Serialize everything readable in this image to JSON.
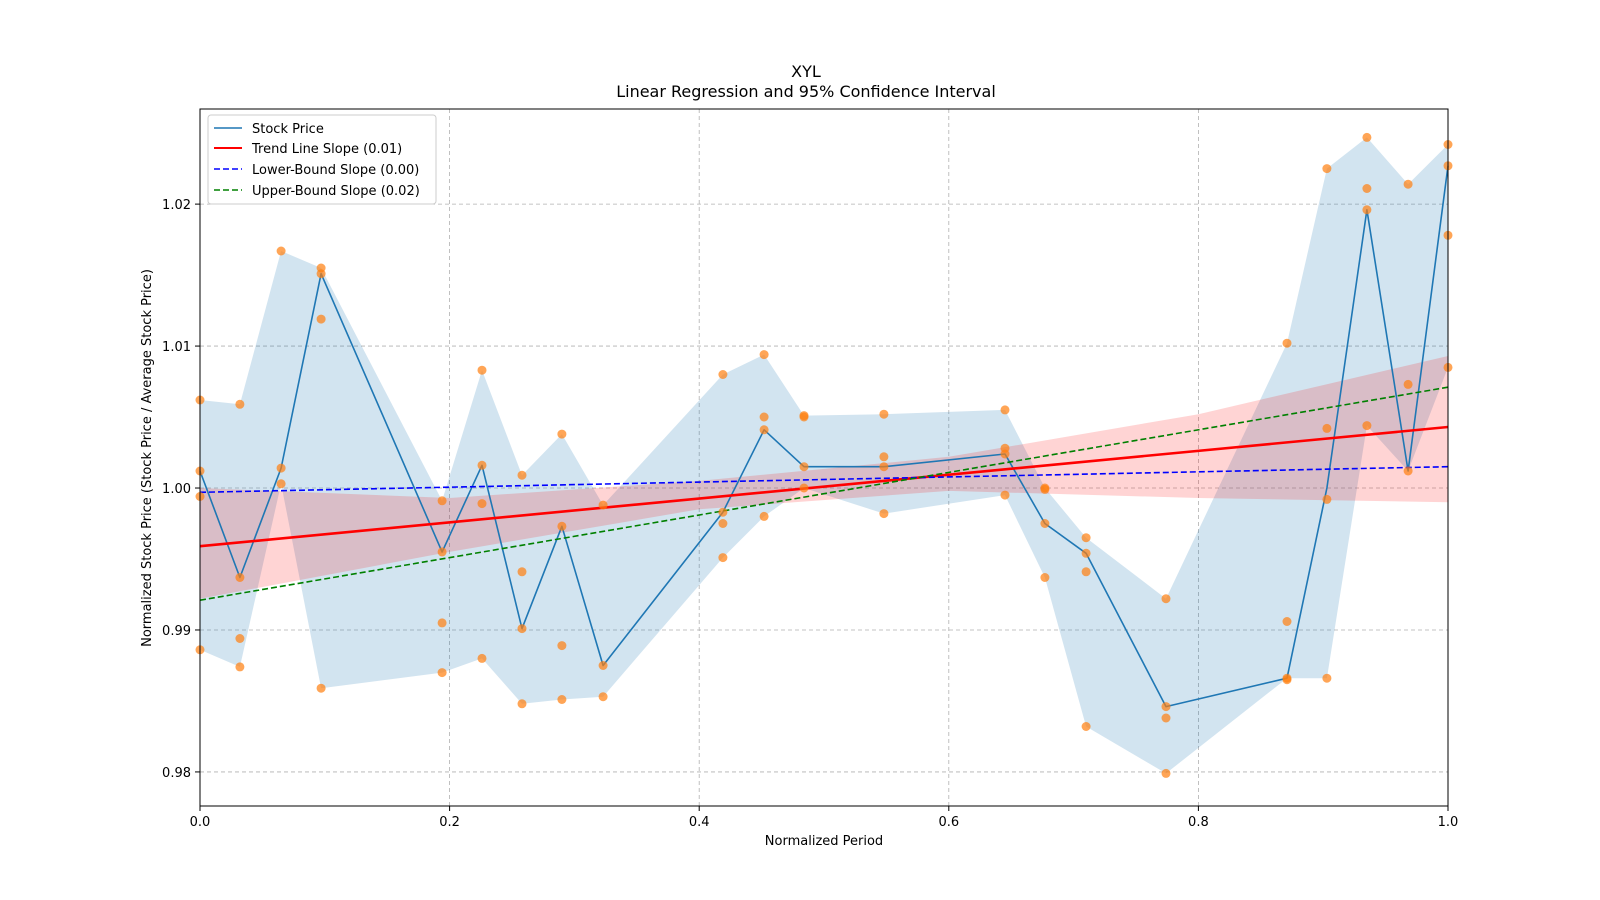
{
  "chart_data": {
    "type": "line",
    "title": "XYL",
    "subtitle": "Linear Regression and 95% Confidence Interval",
    "xlabel": "Normalized Period",
    "ylabel": "Normalized Stock Price (Stock Price / Average Stock Price)",
    "xlim": [
      0,
      1
    ],
    "ylim": [
      0.9776,
      1.0267
    ],
    "grid": true,
    "legend_position": "top-left",
    "x_ticks": [
      {
        "value": 0.0,
        "label": "0.0"
      },
      {
        "value": 0.2,
        "label": "0.2"
      },
      {
        "value": 0.4,
        "label": "0.4"
      },
      {
        "value": 0.6,
        "label": "0.6"
      },
      {
        "value": 0.8,
        "label": "0.8"
      },
      {
        "value": 1.0,
        "label": "1.0"
      }
    ],
    "y_ticks": [
      {
        "value": 0.98,
        "label": "0.98"
      },
      {
        "value": 0.99,
        "label": "0.99"
      },
      {
        "value": 1.0,
        "label": "1.00"
      },
      {
        "value": 1.01,
        "label": "1.01"
      },
      {
        "value": 1.02,
        "label": "1.02"
      }
    ],
    "colors": {
      "stock": "#1f77b4",
      "stock_band": "#1f77b4",
      "scatter": "#ff7f0e",
      "trend": "#ff0000",
      "trend_band": "#ff0000",
      "lower": "#0000ff",
      "upper": "#008000",
      "grid": "#b0b0b0"
    },
    "series": [
      {
        "name": "Stock Price",
        "legend": "Stock Price",
        "style": "solid",
        "x": [
          0.0,
          0.032,
          0.065,
          0.097,
          0.194,
          0.226,
          0.258,
          0.29,
          0.323,
          0.419,
          0.452,
          0.484,
          0.548,
          0.645,
          0.677,
          0.71,
          0.774,
          0.871,
          0.903,
          0.935,
          0.968,
          1.0
        ],
        "values": [
          1.0012,
          0.9937,
          1.0014,
          1.0151,
          0.9955,
          1.0016,
          0.9901,
          0.9973,
          0.9875,
          0.9983,
          1.0041,
          1.0015,
          1.0015,
          1.0024,
          0.9975,
          0.9954,
          0.9846,
          0.9866,
          1.0,
          1.0196,
          1.0012,
          1.0227
        ]
      },
      {
        "name": "Trend Line",
        "legend": "Trend Line Slope (0.01)",
        "style": "solid",
        "x": [
          0,
          1
        ],
        "values": [
          0.9959,
          1.0043
        ]
      },
      {
        "name": "Lower-Bound",
        "legend": "Lower-Bound Slope (0.00)",
        "style": "dashed",
        "x": [
          0,
          1
        ],
        "values": [
          0.9997,
          1.0015
        ]
      },
      {
        "name": "Upper-Bound",
        "legend": "Upper-Bound Slope (0.02)",
        "style": "dashed",
        "x": [
          0,
          1
        ],
        "values": [
          0.9921,
          1.0071
        ]
      }
    ],
    "stock_band": {
      "x": [
        0.0,
        0.032,
        0.065,
        0.097,
        0.194,
        0.226,
        0.258,
        0.29,
        0.323,
        0.419,
        0.452,
        0.484,
        0.548,
        0.645,
        0.677,
        0.71,
        0.774,
        0.871,
        0.903,
        0.935,
        0.968,
        1.0
      ],
      "upper": [
        1.0062,
        1.0059,
        1.0167,
        1.0155,
        0.9991,
        1.0083,
        1.0009,
        1.0038,
        0.9988,
        1.008,
        1.0094,
        1.0051,
        1.0052,
        1.0055,
        1.0,
        0.9965,
        0.9922,
        1.0102,
        1.0225,
        1.0247,
        1.0214,
        1.0242
      ],
      "lower": [
        0.9886,
        0.9874,
        1.0003,
        0.9859,
        0.987,
        0.988,
        0.9848,
        0.9851,
        0.9853,
        0.9951,
        0.998,
        1.0,
        0.9982,
        0.9995,
        0.9937,
        0.9832,
        0.9799,
        0.9866,
        0.9866,
        1.0044,
        1.0012,
        1.0085
      ]
    },
    "trend_band": {
      "x": [
        0,
        0.2,
        0.4,
        0.6,
        0.8,
        1.0
      ],
      "upper": [
        1.0,
        0.9993,
        1.0005,
        1.0022,
        1.0052,
        1.0093
      ],
      "lower": [
        0.9922,
        0.9955,
        0.9985,
        0.9998,
        0.9993,
        0.999
      ]
    },
    "scatter_points": [
      {
        "x": 0.0,
        "y": 1.0062
      },
      {
        "x": 0.0,
        "y": 1.0012
      },
      {
        "x": 0.0,
        "y": 0.9994
      },
      {
        "x": 0.0,
        "y": 0.9886
      },
      {
        "x": 0.032,
        "y": 1.0059
      },
      {
        "x": 0.032,
        "y": 0.9937
      },
      {
        "x": 0.032,
        "y": 0.9894
      },
      {
        "x": 0.032,
        "y": 0.9874
      },
      {
        "x": 0.065,
        "y": 1.0167
      },
      {
        "x": 0.065,
        "y": 1.0014
      },
      {
        "x": 0.065,
        "y": 1.0003
      },
      {
        "x": 0.097,
        "y": 1.0155
      },
      {
        "x": 0.097,
        "y": 1.0151
      },
      {
        "x": 0.097,
        "y": 1.0119
      },
      {
        "x": 0.097,
        "y": 0.9859
      },
      {
        "x": 0.194,
        "y": 0.9991
      },
      {
        "x": 0.194,
        "y": 0.9955
      },
      {
        "x": 0.194,
        "y": 0.9905
      },
      {
        "x": 0.194,
        "y": 0.987
      },
      {
        "x": 0.226,
        "y": 1.0083
      },
      {
        "x": 0.226,
        "y": 1.0016
      },
      {
        "x": 0.226,
        "y": 0.9989
      },
      {
        "x": 0.226,
        "y": 0.988
      },
      {
        "x": 0.258,
        "y": 1.0009
      },
      {
        "x": 0.258,
        "y": 0.9941
      },
      {
        "x": 0.258,
        "y": 0.9901
      },
      {
        "x": 0.258,
        "y": 0.9848
      },
      {
        "x": 0.29,
        "y": 1.0038
      },
      {
        "x": 0.29,
        "y": 0.9973
      },
      {
        "x": 0.29,
        "y": 0.9889
      },
      {
        "x": 0.29,
        "y": 0.9851
      },
      {
        "x": 0.323,
        "y": 0.9988
      },
      {
        "x": 0.323,
        "y": 0.9875
      },
      {
        "x": 0.323,
        "y": 0.9853
      },
      {
        "x": 0.419,
        "y": 1.008
      },
      {
        "x": 0.419,
        "y": 0.9983
      },
      {
        "x": 0.419,
        "y": 0.9975
      },
      {
        "x": 0.419,
        "y": 0.9951
      },
      {
        "x": 0.452,
        "y": 1.0094
      },
      {
        "x": 0.452,
        "y": 1.005
      },
      {
        "x": 0.452,
        "y": 1.0041
      },
      {
        "x": 0.452,
        "y": 0.998
      },
      {
        "x": 0.484,
        "y": 1.0051
      },
      {
        "x": 0.484,
        "y": 1.005
      },
      {
        "x": 0.484,
        "y": 1.0015
      },
      {
        "x": 0.484,
        "y": 1.0
      },
      {
        "x": 0.548,
        "y": 1.0052
      },
      {
        "x": 0.548,
        "y": 1.0022
      },
      {
        "x": 0.548,
        "y": 1.0015
      },
      {
        "x": 0.548,
        "y": 0.9982
      },
      {
        "x": 0.645,
        "y": 1.0055
      },
      {
        "x": 0.645,
        "y": 1.0028
      },
      {
        "x": 0.645,
        "y": 1.0024
      },
      {
        "x": 0.645,
        "y": 0.9995
      },
      {
        "x": 0.677,
        "y": 1.0
      },
      {
        "x": 0.677,
        "y": 0.9999
      },
      {
        "x": 0.677,
        "y": 0.9975
      },
      {
        "x": 0.677,
        "y": 0.9937
      },
      {
        "x": 0.71,
        "y": 0.9965
      },
      {
        "x": 0.71,
        "y": 0.9954
      },
      {
        "x": 0.71,
        "y": 0.9941
      },
      {
        "x": 0.71,
        "y": 0.9832
      },
      {
        "x": 0.774,
        "y": 0.9922
      },
      {
        "x": 0.774,
        "y": 0.9846
      },
      {
        "x": 0.774,
        "y": 0.9838
      },
      {
        "x": 0.774,
        "y": 0.9799
      },
      {
        "x": 0.871,
        "y": 1.0102
      },
      {
        "x": 0.871,
        "y": 0.9906
      },
      {
        "x": 0.871,
        "y": 0.9866
      },
      {
        "x": 0.871,
        "y": 0.9865
      },
      {
        "x": 0.903,
        "y": 1.0225
      },
      {
        "x": 0.903,
        "y": 1.0042
      },
      {
        "x": 0.903,
        "y": 0.9992
      },
      {
        "x": 0.903,
        "y": 0.9866
      },
      {
        "x": 0.935,
        "y": 1.0247
      },
      {
        "x": 0.935,
        "y": 1.0211
      },
      {
        "x": 0.935,
        "y": 1.0196
      },
      {
        "x": 0.935,
        "y": 1.0044
      },
      {
        "x": 0.968,
        "y": 1.0214
      },
      {
        "x": 0.968,
        "y": 1.0073
      },
      {
        "x": 0.968,
        "y": 1.0012
      },
      {
        "x": 1.0,
        "y": 1.0242
      },
      {
        "x": 1.0,
        "y": 1.0227
      },
      {
        "x": 1.0,
        "y": 1.0178
      },
      {
        "x": 1.0,
        "y": 1.0085
      }
    ]
  }
}
